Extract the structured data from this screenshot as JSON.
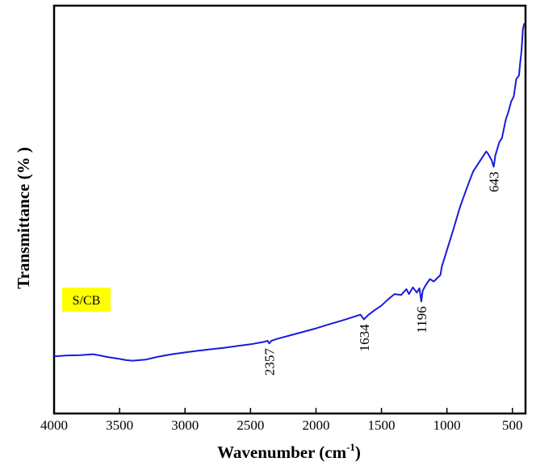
{
  "chart_data": {
    "type": "line",
    "xlabel": "Wavenumber (cm",
    "xlabel_sup": "-1",
    "xlabel_close": ")",
    "ylabel": "Transmittance (% )",
    "xlim": [
      4000,
      400
    ],
    "x_reversed": true,
    "y_ticks_shown": false,
    "xticks": [
      "4000",
      "3500",
      "3000",
      "2500",
      "2000",
      "1500",
      "1000",
      "500"
    ],
    "legend": {
      "label": "S/CB",
      "highlight_color": "#ffff00",
      "placement": "upper-left"
    },
    "series": [
      {
        "color": "#1a1adb",
        "x": [
          4000,
          3900,
          3800,
          3700,
          3650,
          3600,
          3500,
          3450,
          3400,
          3300,
          3200,
          3100,
          3000,
          2900,
          2800,
          2700,
          2600,
          2500,
          2400,
          2370,
          2357,
          2340,
          2300,
          2200,
          2100,
          2000,
          1900,
          1800,
          1700,
          1660,
          1634,
          1600,
          1550,
          1500,
          1450,
          1400,
          1350,
          1310,
          1290,
          1260,
          1230,
          1210,
          1196,
          1185,
          1160,
          1130,
          1100,
          1050,
          1040,
          1000,
          950,
          900,
          850,
          800,
          750,
          700,
          690,
          660,
          643,
          630,
          600,
          580,
          550,
          530,
          510,
          490,
          470,
          450,
          440,
          430,
          420,
          410
        ],
        "y": [
          5.5,
          5.8,
          5.9,
          6.2,
          5.8,
          5.3,
          4.6,
          4.2,
          4.0,
          4.4,
          5.4,
          6.2,
          6.8,
          7.4,
          7.9,
          8.4,
          9.0,
          9.6,
          10.4,
          10.8,
          9.9,
          10.8,
          11.4,
          12.6,
          13.8,
          15.0,
          16.4,
          17.7,
          19.1,
          19.7,
          18.1,
          19.6,
          21.3,
          22.8,
          24.9,
          26.7,
          26.4,
          28.4,
          26.7,
          29.0,
          27.2,
          28.7,
          24.2,
          27.9,
          29.9,
          31.8,
          31.0,
          33.2,
          35.9,
          41.7,
          48.9,
          56.4,
          62.6,
          68.5,
          71.9,
          75.3,
          74.8,
          72.5,
          70.1,
          74.0,
          78.5,
          79.9,
          86.3,
          88.9,
          92.3,
          94.0,
          100.0,
          101.2,
          105.8,
          109.8,
          117.0,
          119.0
        ]
      }
    ],
    "ylim": [
      -14,
      125
    ],
    "annotations": [
      {
        "text": "2357",
        "x": 2357,
        "y": 9.9
      },
      {
        "text": "1634",
        "x": 1634,
        "y": 18.1
      },
      {
        "text": "1196",
        "x": 1196,
        "y": 24.2
      },
      {
        "text": "643",
        "x": 643,
        "y": 70.1
      }
    ]
  }
}
